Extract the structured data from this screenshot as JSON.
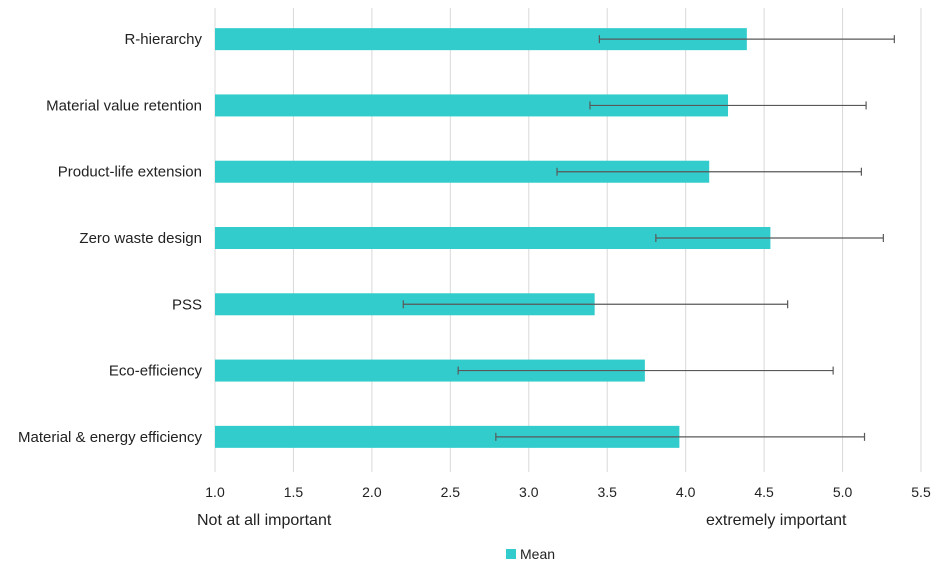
{
  "chart_data": {
    "type": "bar",
    "orientation": "horizontal",
    "categories": [
      "R-hierarchy",
      "Material value retention",
      "Product-life extension",
      "Zero waste design",
      "PSS",
      "Eco-efficiency",
      "Material & energy efficiency"
    ],
    "series": [
      {
        "name": "Mean",
        "values": [
          4.39,
          4.27,
          4.15,
          4.54,
          3.42,
          3.74,
          3.96
        ],
        "error_low": [
          3.45,
          3.39,
          3.18,
          3.81,
          2.2,
          2.55,
          2.79
        ],
        "error_high": [
          5.33,
          5.15,
          5.12,
          5.26,
          4.65,
          4.94,
          5.14
        ]
      }
    ],
    "xlim": [
      1.0,
      5.5
    ],
    "xticks": [
      "1.0",
      "1.5",
      "2.0",
      "2.5",
      "3.0",
      "3.5",
      "4.0",
      "4.5",
      "5.0",
      "5.5"
    ],
    "anchor_left": "Not at all important",
    "anchor_right": "extremely important",
    "grid": "vertical",
    "legend_position": "bottom",
    "colors": {
      "bar": "#33CCCC",
      "grid": "#D9D9D9",
      "error": "#595959"
    }
  }
}
